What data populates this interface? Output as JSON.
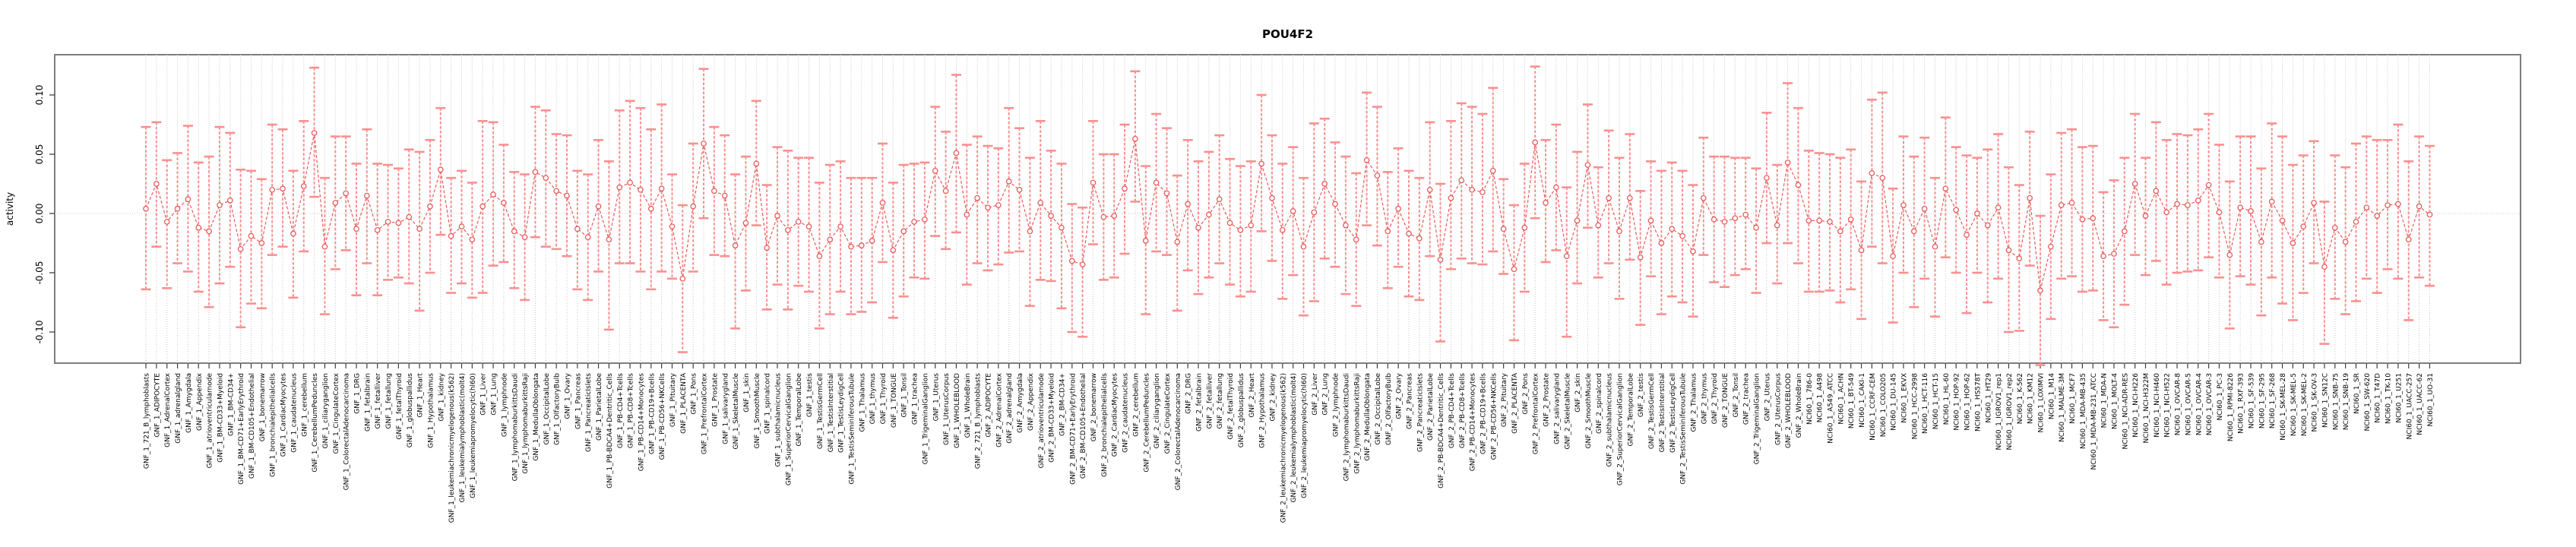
{
  "chart": {
    "title": "POU4F2",
    "ylabel": "activity",
    "y_ticks": [
      "0.10",
      "0.05",
      "0.00",
      "-0.05",
      "-0.10"
    ]
  },
  "colors": {
    "error_bar": "#f9908f",
    "series_line": "#e85c5c",
    "point_stroke": "#e85c5c",
    "grid": "#c8c8c8",
    "frame": "#7d7d7d",
    "tick": "#404040",
    "text": "#000000",
    "background": "#ffffff"
  },
  "chart_data": {
    "type": "line",
    "subtype": "errorbar-line",
    "title": "POU4F2",
    "xlabel": "",
    "ylabel": "activity",
    "ylim": [
      -0.128,
      0.134
    ],
    "y_tick_values": [
      0.1,
      0.05,
      0.0,
      -0.05,
      -0.1
    ],
    "grid": "vertical dotted gridline at every category; horizontal dotted line at y=0",
    "legend": "none",
    "categories": [
      "GNF_1_721_B_lymphoblasts",
      "GNF_1_ADIPOCYTE",
      "GNF_1_AdrenalCortex",
      "GNF_1_adrenalgland",
      "GNF_1_Amygdala",
      "GNF_1_Appendix",
      "GNF_1_atrioventricularnode",
      "GNF_1_BM-CD33+Myeloid",
      "GNF_1_BM-CD34+",
      "GNF_1_BM-CD71+EarlyErythroid",
      "GNF_1_BM-CD105+Endothelial",
      "GNF_1_bonemarrow",
      "GNF_1_bronchialepithelialcells",
      "GNF_1_CardiacMyocytes",
      "GNF_1_caudatenucleus",
      "GNF_1_cerebellum",
      "GNF_1_CerebellumPeduncles",
      "GNF_1_ciliaryganglion",
      "GNF_1_CingulateCortex",
      "GNF_1_ColorectalAdenocarcinoma",
      "GNF_1_DRG",
      "GNF_1_fetalbrain",
      "GNF_1_fetalliver",
      "GNF_1_fetallung",
      "GNF_1_fetalThyroid",
      "GNF_1_globuspallidus",
      "GNF_1_Heart",
      "GNF_1_Hypothalamus",
      "GNF_1_kidney",
      "GNF_1_leukemiachronicmyelogenous(k562)",
      "GNF_1_leukemialymphoblastic(molt4)",
      "GNF_1_leukemiapromyelocytic(hl60)",
      "GNF_1_Liver",
      "GNF_1_Lung",
      "GNF_1_lymphnode",
      "GNF_1_lymphomaburkittsDaudi",
      "GNF_1_lymphomaburkittsRaji",
      "GNF_1_MedullaOblongata",
      "GNF_1_OccipitalLobe",
      "GNF_1_OlfactoryBulb",
      "GNF_1_Ovary",
      "GNF_1_Pancreas",
      "GNF_1_PancreaticIslets",
      "GNF_1_ParietalLobe",
      "GNF_1_PB-BDCA4+Dentritic_Cells",
      "GNF_1_PB-CD4+Tcells",
      "GNF_1_PB-CD8+Tcells",
      "GNF_1_PB-CD14+Monocytes",
      "GNF_1_PB-CD19+Bcells",
      "GNF_1_PB-CD56+NKCells",
      "GNF_1_Pituitary",
      "GNF_1_PLACENTA",
      "GNF_1_Pons",
      "GNF_1_PrefrontalCortex",
      "GNF_1_Prostate",
      "GNF_1_salivarygland",
      "GNF_1_SkeletalMuscle",
      "GNF_1_skin",
      "GNF_1_SmoothMuscle",
      "GNF_1_spinalcord",
      "GNF_1_subthalamicnucleus",
      "GNF_1_SuperiorCervicalGanglion",
      "GNF_1_TemporalLobe",
      "GNF_1_testis",
      "GNF_1_TestisGermCell",
      "GNF_1_TestisInterstitial",
      "GNF_1_TestisLeydigCell",
      "GNF_1_TestisSeminiferousTubule",
      "GNF_1_Thalamus",
      "GNF_1_thymus",
      "GNF_1_Thyroid",
      "GNF_1_TONGUE",
      "GNF_1_Tonsil",
      "GNF_1_trachea",
      "GNF_1_TrigeminalGanglion",
      "GNF_1_Uterus",
      "GNF_1_UterusCorpus",
      "GNF_1_WHOLEBLOOD",
      "GNF_1_WholeBrain",
      "GNF_2_721_B_lymphoblasts",
      "GNF_2_ADIPOCYTE",
      "GNF_2_AdrenalCortex",
      "GNF_2_adrenalgland",
      "GNF_2_Amygdala",
      "GNF_2_Appendix",
      "GNF_2_atrioventricularnode",
      "GNF_2_BM-CD33+Myeloid",
      "GNF_2_BM-CD34+",
      "GNF_2_BM-CD71+EarlyErythroid",
      "GNF_2_BM-CD105+Endothelial",
      "GNF_2_bonemarrow",
      "GNF_2_bronchialepithelialcells",
      "GNF_2_CardiacMyocytes",
      "GNF_2_caudatenucleus",
      "GNF_2_cerebellum",
      "GNF_2_CerebellumPeduncles",
      "GNF_2_ciliaryganglion",
      "GNF_2_CingulateCortex",
      "GNF_2_ColorectalAdenocarcinoma",
      "GNF_2_DRG",
      "GNF_2_fetalbrain",
      "GNF_2_fetalliver",
      "GNF_2_fetallung",
      "GNF_2_fetalThyroid",
      "GNF_2_globuspallidus",
      "GNF_2_Heart",
      "GNF_2_Hypothalamus",
      "GNF_2_kidney",
      "GNF_2_leukemiachronicmyelogenous(k562)",
      "GNF_2_leukemialymphoblastic(molt4)",
      "GNF_2_leukemiapromyelocytic(hl60)",
      "GNF_2_Liver",
      "GNF_2_Lung",
      "GNF_2_lymphnode",
      "GNF_2_lymphomaburkittsDaudi",
      "GNF_2_lymphomaburkittsRaji",
      "GNF_2_MedullaOblongata",
      "GNF_2_OccipitalLobe",
      "GNF_2_OlfactoryBulb",
      "GNF_2_Ovary",
      "GNF_2_Pancreas",
      "GNF_2_PancreaticIslets",
      "GNF_2_ParietalLobe",
      "GNF_2_PB-BDCA4+Dentritic_Cells",
      "GNF_2_PB-CD4+Tcells",
      "GNF_2_PB-CD8+Tcells",
      "GNF_2_PB-CD14+Monocytes",
      "GNF_2_PB-CD19+Bcells",
      "GNF_2_PB-CD56+NKCells",
      "GNF_2_Pituitary",
      "GNF_2_PLACENTA",
      "GNF_2_Pons",
      "GNF_2_PrefrontalCortex",
      "GNF_2_Prostate",
      "GNF_2_salivarygland",
      "GNF_2_SkeletalMuscle",
      "GNF_2_skin",
      "GNF_2_SmoothMuscle",
      "GNF_2_spinalcord",
      "GNF_2_subthalamicnucleus",
      "GNF_2_SuperiorCervicalGanglion",
      "GNF_2_TemporalLobe",
      "GNF_2_testis",
      "GNF_2_TestisGermCell",
      "GNF_2_TestisInterstitial",
      "GNF_2_TestisLeydigCell",
      "GNF_2_TestisSeminiferousTubule",
      "GNF_2_Thalamus",
      "GNF_2_thymus",
      "GNF_2_Thyroid",
      "GNF_2_TONGUE",
      "GNF_2_Tonsil",
      "GNF_2_trachea",
      "GNF_2_TrigeminalGanglion",
      "GNF_2_Uterus",
      "GNF_2_UterusCorpus",
      "GNF_2_WHOLEBLOOD",
      "GNF_2_WholeBrain",
      "NCI60_1_786-0",
      "NCI60_1_A498",
      "NCI60_1_A549_ATCC",
      "NCI60_1_ACHN",
      "NCI60_1_BT-549",
      "NCI60_1_CAKI-1",
      "NCI60_1_CCRF-CEM",
      "NCI60_1_COLO205",
      "NCI60_1_DU-145",
      "NCI60_1_EKVX",
      "NCI60_1_HCC-2998",
      "NCI60_1_HCT-116",
      "NCI60_1_HCT-15",
      "NCI60_1_HL-60",
      "NCI60_1_HOP-92",
      "NCI60_1_HOP-62",
      "NCI60_1_HS578T",
      "NCI60_1_HT29",
      "NCI60_1_IGROV1_rep1",
      "NCI60_1_IGROV1_rep2",
      "NCI60_1_K-562",
      "NCI60_1_KM12",
      "NCI60_1_LOXIMVI",
      "NCI60_1_M14",
      "NCI60_1_MALME-3M",
      "NCI60_1_MCF7",
      "NCI60_1_MDA-MB-435",
      "NCI60_1_MDA-MB-231_ATCC",
      "NCI60_1_MDA-N",
      "NCI60_1_MOLT-4",
      "NCI60_1_NCI-ADR-RES",
      "NCI60_1_NCI-H226",
      "NCI60_1_NCI-H322M",
      "NCI60_1_NCI-H460",
      "NCI60_1_NCI-H522",
      "NCI60_1_OVCAR-8",
      "NCI60_1_OVCAR-5",
      "NCI60_1_OVCAR-4",
      "NCI60_1_OVCAR-3",
      "NCI60_1_PC-3",
      "NCI60_1_RPMI-8226",
      "NCI60_1_RXF-393",
      "NCI60_1_SF-539",
      "NCI60_1_SF-295",
      "NCI60_1_SF-268",
      "NCI60_1_SK-MEL-28",
      "NCI60_1_SK-MEL-5",
      "NCI60_1_SK-MEL-2",
      "NCI60_1_SK-OV-3",
      "NCI60_1_SN12C",
      "NCI60_1_SNB-75",
      "NCI60_1_SNB-19",
      "NCI60_1_SR",
      "NCI60_1_SW-620",
      "NCI60_1_T47D",
      "NCI60_1_TK-10",
      "NCI60_1_U251",
      "NCI60_1_UACC-257",
      "NCI60_1_UACC-62",
      "NCI60_1_UO-31"
    ],
    "series": [
      {
        "name": "activity",
        "values": [
          0.004,
          0.025,
          -0.007,
          0.004,
          0.012,
          -0.012,
          -0.015,
          0.007,
          0.011,
          -0.03,
          -0.019,
          -0.025,
          0.02,
          0.021,
          -0.017,
          0.023,
          0.068,
          -0.028,
          0.009,
          0.017,
          -0.013,
          0.015,
          -0.014,
          -0.007,
          -0.008,
          -0.003,
          -0.013,
          0.006,
          0.037,
          -0.019,
          -0.011,
          -0.022,
          0.006,
          0.016,
          0.009,
          -0.015,
          -0.02,
          0.035,
          0.03,
          0.019,
          0.015,
          -0.013,
          -0.02,
          0.006,
          -0.022,
          0.022,
          0.026,
          0.02,
          0.004,
          0.021,
          -0.011,
          -0.055,
          0.006,
          0.059,
          0.019,
          0.015,
          -0.027,
          -0.008,
          0.042,
          -0.029,
          -0.002,
          -0.014,
          -0.007,
          -0.011,
          -0.036,
          -0.022,
          -0.011,
          -0.028,
          -0.027,
          -0.023,
          0.009,
          -0.031,
          -0.015,
          -0.007,
          -0.005,
          0.036,
          0.019,
          0.051,
          -0.001,
          0.013,
          0.005,
          0.007,
          0.027,
          0.02,
          -0.015,
          0.009,
          -0.002,
          -0.012,
          -0.04,
          -0.043,
          0.026,
          -0.003,
          -0.002,
          0.021,
          0.063,
          -0.023,
          0.026,
          0.017,
          -0.024,
          0.008,
          -0.012,
          -0.001,
          0.012,
          -0.008,
          -0.014,
          -0.01,
          0.042,
          0.013,
          -0.014,
          0.002,
          -0.028,
          0.001,
          0.025,
          0.008,
          -0.01,
          -0.022,
          0.045,
          0.032,
          -0.015,
          0.004,
          -0.017,
          -0.021,
          0.02,
          -0.039,
          0.013,
          0.028,
          0.02,
          0.018,
          0.036,
          -0.013,
          -0.047,
          -0.012,
          0.06,
          0.009,
          0.022,
          -0.036,
          -0.006,
          0.041,
          -0.01,
          0.013,
          -0.015,
          0.013,
          -0.037,
          -0.006,
          -0.025,
          -0.013,
          -0.019,
          -0.032,
          0.013,
          -0.005,
          -0.007,
          -0.004,
          -0.001,
          -0.012,
          0.03,
          -0.01,
          0.043,
          0.024,
          -0.006,
          -0.006,
          -0.007,
          -0.015,
          -0.005,
          -0.031,
          0.034,
          0.03,
          -0.036,
          0.007,
          -0.015,
          0.004,
          -0.028,
          0.021,
          0.003,
          -0.018,
          0.0,
          -0.01,
          0.005,
          -0.031,
          -0.038,
          0.013,
          -0.065,
          -0.028,
          0.007,
          0.009,
          -0.005,
          -0.004,
          -0.036,
          -0.034,
          -0.015,
          0.025,
          -0.002,
          0.019,
          0.001,
          0.008,
          0.007,
          0.011,
          0.024,
          0.001,
          -0.035,
          0.005,
          0.002,
          -0.024,
          0.01,
          -0.006,
          -0.025,
          -0.011,
          0.009,
          -0.045,
          -0.012,
          -0.024,
          -0.007,
          0.005,
          -0.002,
          0.007,
          0.008,
          -0.022,
          0.006,
          -0.001
        ],
        "lower": [
          -0.064,
          -0.028,
          -0.063,
          -0.042,
          -0.049,
          -0.066,
          -0.079,
          -0.059,
          -0.045,
          -0.096,
          -0.076,
          -0.08,
          -0.035,
          -0.028,
          -0.071,
          -0.032,
          0.014,
          -0.085,
          -0.047,
          -0.031,
          -0.069,
          -0.042,
          -0.069,
          -0.056,
          -0.054,
          -0.059,
          -0.082,
          -0.05,
          -0.018,
          -0.067,
          -0.059,
          -0.071,
          -0.067,
          -0.044,
          -0.041,
          -0.063,
          -0.073,
          -0.02,
          -0.028,
          -0.03,
          -0.036,
          -0.064,
          -0.073,
          -0.049,
          -0.098,
          -0.042,
          -0.042,
          -0.049,
          -0.064,
          -0.049,
          -0.055,
          -0.117,
          -0.049,
          -0.004,
          -0.035,
          -0.036,
          -0.097,
          -0.065,
          -0.01,
          -0.081,
          -0.06,
          -0.081,
          -0.061,
          -0.066,
          -0.097,
          -0.085,
          -0.066,
          -0.085,
          -0.083,
          -0.075,
          -0.041,
          -0.088,
          -0.07,
          -0.054,
          -0.055,
          -0.019,
          -0.03,
          -0.016,
          -0.06,
          -0.042,
          -0.048,
          -0.043,
          -0.033,
          -0.032,
          -0.078,
          -0.056,
          -0.057,
          -0.08,
          -0.1,
          -0.104,
          -0.026,
          -0.056,
          -0.054,
          -0.034,
          0.01,
          -0.085,
          -0.032,
          -0.035,
          -0.082,
          -0.048,
          -0.068,
          -0.054,
          -0.042,
          -0.06,
          -0.07,
          -0.066,
          -0.015,
          -0.04,
          -0.072,
          -0.052,
          -0.086,
          -0.074,
          -0.038,
          -0.045,
          -0.068,
          -0.078,
          -0.01,
          -0.027,
          -0.063,
          -0.045,
          -0.07,
          -0.073,
          -0.036,
          -0.108,
          -0.047,
          -0.038,
          -0.042,
          -0.043,
          -0.032,
          -0.051,
          -0.107,
          -0.066,
          -0.004,
          -0.041,
          -0.031,
          -0.104,
          -0.059,
          -0.012,
          -0.054,
          -0.042,
          -0.072,
          -0.039,
          -0.094,
          -0.053,
          -0.085,
          -0.07,
          -0.075,
          -0.087,
          -0.035,
          -0.058,
          -0.062,
          -0.052,
          -0.047,
          -0.067,
          -0.025,
          -0.059,
          -0.025,
          -0.042,
          -0.066,
          -0.066,
          -0.065,
          -0.075,
          -0.064,
          -0.089,
          -0.028,
          -0.042,
          -0.092,
          -0.05,
          -0.079,
          -0.055,
          -0.087,
          -0.037,
          -0.05,
          -0.084,
          -0.05,
          -0.075,
          -0.055,
          -0.1,
          -0.099,
          -0.044,
          -0.128,
          -0.089,
          -0.055,
          -0.053,
          -0.066,
          -0.065,
          -0.09,
          -0.096,
          -0.077,
          -0.035,
          -0.052,
          -0.04,
          -0.06,
          -0.05,
          -0.049,
          -0.048,
          -0.037,
          -0.054,
          -0.097,
          -0.053,
          -0.06,
          -0.086,
          -0.054,
          -0.076,
          -0.09,
          -0.067,
          -0.042,
          -0.11,
          -0.072,
          -0.085,
          -0.074,
          -0.055,
          -0.067,
          -0.047,
          -0.055,
          -0.09,
          -0.054,
          -0.061
        ],
        "upper": [
          0.073,
          0.077,
          0.045,
          0.051,
          0.074,
          0.043,
          0.048,
          0.073,
          0.068,
          0.037,
          0.036,
          0.029,
          0.075,
          0.071,
          0.036,
          0.078,
          0.123,
          0.03,
          0.065,
          0.065,
          0.042,
          0.071,
          0.042,
          0.041,
          0.038,
          0.054,
          0.052,
          0.062,
          0.089,
          0.03,
          0.036,
          0.026,
          0.078,
          0.077,
          0.058,
          0.035,
          0.033,
          0.09,
          0.087,
          0.067,
          0.066,
          0.036,
          0.033,
          0.062,
          0.044,
          0.087,
          0.095,
          0.089,
          0.071,
          0.092,
          0.033,
          0.007,
          0.059,
          0.122,
          0.073,
          0.066,
          0.033,
          0.048,
          0.095,
          0.024,
          0.056,
          0.053,
          0.047,
          0.047,
          0.026,
          0.041,
          0.044,
          0.03,
          0.03,
          0.03,
          0.059,
          0.026,
          0.041,
          0.042,
          0.043,
          0.09,
          0.069,
          0.117,
          0.058,
          0.065,
          0.057,
          0.055,
          0.089,
          0.072,
          0.047,
          0.078,
          0.053,
          0.042,
          0.008,
          0.005,
          0.078,
          0.05,
          0.05,
          0.075,
          0.12,
          0.04,
          0.084,
          0.072,
          0.032,
          0.062,
          0.044,
          0.052,
          0.066,
          0.046,
          0.04,
          0.044,
          0.1,
          0.066,
          0.042,
          0.056,
          0.03,
          0.076,
          0.08,
          0.06,
          0.048,
          0.034,
          0.102,
          0.09,
          0.035,
          0.055,
          0.036,
          0.03,
          0.077,
          0.025,
          0.078,
          0.093,
          0.09,
          0.084,
          0.106,
          0.029,
          0.007,
          0.042,
          0.124,
          0.062,
          0.075,
          0.022,
          0.052,
          0.092,
          0.039,
          0.07,
          0.047,
          0.067,
          0.019,
          0.044,
          0.036,
          0.043,
          0.036,
          0.024,
          0.064,
          0.048,
          0.048,
          0.047,
          0.047,
          0.038,
          0.085,
          0.041,
          0.11,
          0.089,
          0.053,
          0.051,
          0.05,
          0.047,
          0.054,
          0.027,
          0.096,
          0.102,
          0.021,
          0.065,
          0.048,
          0.064,
          0.03,
          0.081,
          0.056,
          0.049,
          0.047,
          0.054,
          0.067,
          0.039,
          0.024,
          0.069,
          -0.002,
          0.033,
          0.068,
          0.071,
          0.056,
          0.057,
          0.018,
          0.028,
          0.047,
          0.084,
          0.047,
          0.077,
          0.062,
          0.067,
          0.066,
          0.071,
          0.084,
          0.058,
          0.027,
          0.065,
          0.065,
          0.038,
          0.076,
          0.065,
          0.041,
          0.049,
          0.061,
          0.01,
          0.049,
          0.039,
          0.059,
          0.065,
          0.062,
          0.062,
          0.075,
          0.044,
          0.065,
          0.057
        ]
      }
    ]
  }
}
